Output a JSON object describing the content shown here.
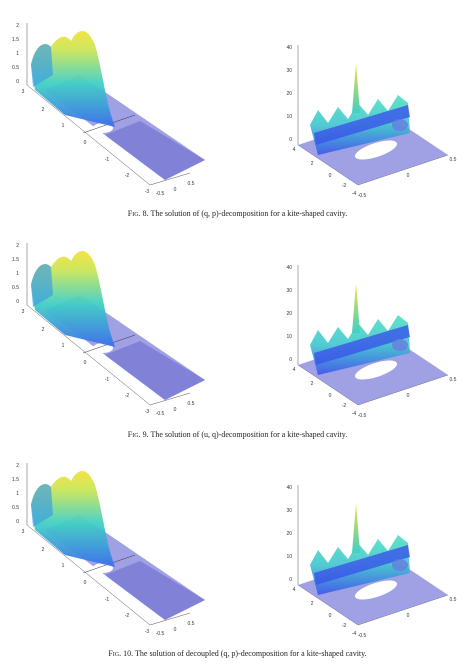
{
  "figures": [
    {
      "caption_label": "Fig. 8.",
      "caption_text": "The solution of (q, p)-decomposition for a kite-shaped cavity.",
      "left": {
        "z_ticks": [
          "2",
          "1.5",
          "1",
          "0.5",
          "0"
        ],
        "y_ticks": [
          "3",
          "2",
          "1",
          "0",
          "-1",
          "-2",
          "-3"
        ],
        "x_ticks": [
          "-0.5",
          "0",
          "0.5"
        ]
      },
      "right": {
        "z_ticks": [
          "40",
          "30",
          "20",
          "10",
          "0"
        ],
        "y_ticks": [
          "4",
          "2",
          "0",
          "-2",
          "-4"
        ],
        "x_ticks": [
          "-0.5",
          "0",
          "0.5"
        ]
      }
    },
    {
      "caption_label": "Fig. 9.",
      "caption_text": "The solution of (u, q)-decomposition for a kite-shaped cavity.",
      "left": {
        "z_ticks": [
          "2",
          "1.5",
          "1",
          "0.5",
          "0"
        ],
        "y_ticks": [
          "3",
          "2",
          "1",
          "0",
          "-1",
          "-2",
          "-3"
        ],
        "x_ticks": [
          "-0.5",
          "0",
          "0.5"
        ]
      },
      "right": {
        "z_ticks": [
          "40",
          "30",
          "20",
          "10",
          "0"
        ],
        "y_ticks": [
          "4",
          "2",
          "0",
          "-2",
          "-4"
        ],
        "x_ticks": [
          "-0.5",
          "0",
          "0.5"
        ]
      }
    },
    {
      "caption_label": "Fig. 10.",
      "caption_text": "The solution of decoupled (q, p)-decomposition for a kite-shaped cavity.",
      "left": {
        "z_ticks": [
          "2",
          "1.5",
          "1",
          "0.5",
          "0"
        ],
        "y_ticks": [
          "3",
          "2",
          "1",
          "0",
          "-1",
          "-2",
          "-3"
        ],
        "x_ticks": [
          "-0.5",
          "0",
          "0.5"
        ]
      },
      "right": {
        "z_ticks": [
          "40",
          "30",
          "20",
          "10",
          "0"
        ],
        "y_ticks": [
          "4",
          "2",
          "0",
          "-2",
          "-4"
        ],
        "x_ticks": [
          "-0.5",
          "0",
          "0.5"
        ]
      }
    }
  ],
  "colors": {
    "plane": "#8f8fe0",
    "surface_low": "#3b7bea",
    "surface_mid": "#3fd0c8",
    "surface_high": "#f0e040",
    "axis": "#555555"
  }
}
